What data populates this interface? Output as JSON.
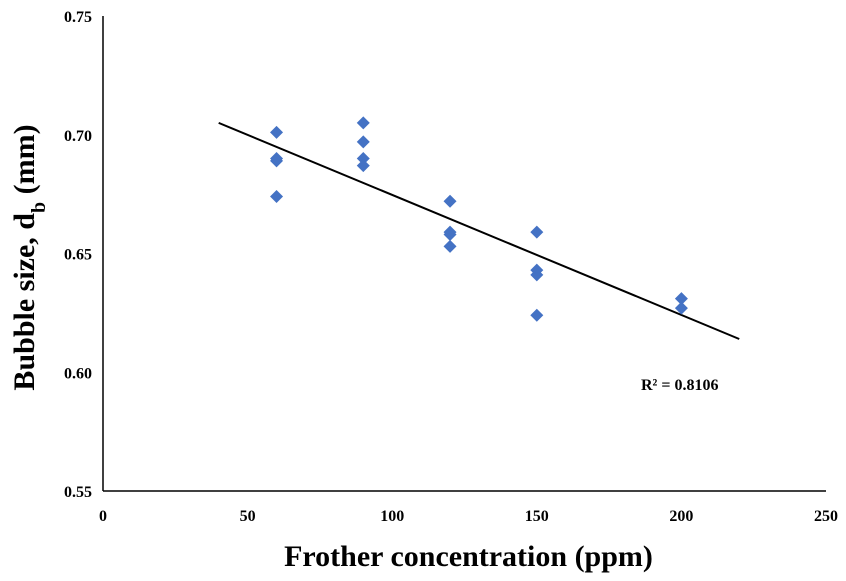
{
  "chart_data": {
    "type": "scatter",
    "title": "",
    "xlabel": "Frother concentration (ppm)",
    "ylabel": "Bubble size, d",
    "ylabel_subscript": "b",
    "ylabel_unit": " (mm)",
    "xlim": [
      0,
      250
    ],
    "ylim": [
      0.55,
      0.75
    ],
    "x_ticks": [
      "0",
      "50",
      "100",
      "150",
      "200",
      "250"
    ],
    "y_ticks": [
      "0.55",
      "0.60",
      "0.65",
      "0.70",
      "0.75"
    ],
    "grid": false,
    "legend": "none",
    "marker_color": "#4472C4",
    "marker": "diamond",
    "series": [
      {
        "points": [
          {
            "x": 60,
            "y": 0.701
          },
          {
            "x": 60,
            "y": 0.69
          },
          {
            "x": 60,
            "y": 0.689
          },
          {
            "x": 60,
            "y": 0.674
          },
          {
            "x": 90,
            "y": 0.705
          },
          {
            "x": 90,
            "y": 0.697
          },
          {
            "x": 90,
            "y": 0.69
          },
          {
            "x": 90,
            "y": 0.687
          },
          {
            "x": 120,
            "y": 0.672
          },
          {
            "x": 120,
            "y": 0.659
          },
          {
            "x": 120,
            "y": 0.658
          },
          {
            "x": 120,
            "y": 0.653
          },
          {
            "x": 150,
            "y": 0.659
          },
          {
            "x": 150,
            "y": 0.643
          },
          {
            "x": 150,
            "y": 0.641
          },
          {
            "x": 150,
            "y": 0.624
          },
          {
            "x": 200,
            "y": 0.631
          },
          {
            "x": 200,
            "y": 0.627
          }
        ]
      }
    ],
    "trendline": {
      "type": "linear",
      "color": "#000000",
      "x": [
        40,
        220
      ],
      "y": [
        0.705,
        0.614
      ]
    },
    "annotation": "R² = 0.8106"
  }
}
